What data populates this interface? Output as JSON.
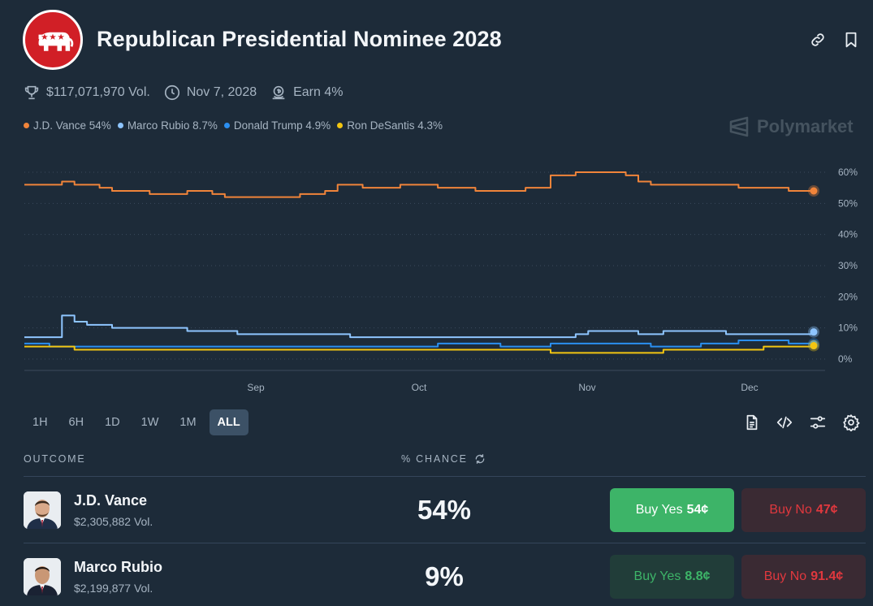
{
  "header": {
    "title": "Republican Presidential Nominee 2028",
    "logo_icon": "republican-elephant-logo",
    "link_icon": "link-icon",
    "bookmark_icon": "bookmark-icon"
  },
  "meta": {
    "volume": "$117,071,970 Vol.",
    "end_date": "Nov 7, 2028",
    "earn": "Earn 4%"
  },
  "legend": [
    {
      "label": "J.D. Vance 54%",
      "color": "#f0843a"
    },
    {
      "label": "Marco Rubio 8.7%",
      "color": "#8ec5ff"
    },
    {
      "label": "Donald Trump 4.9%",
      "color": "#2b8ff0"
    },
    {
      "label": "Ron DeSantis 4.3%",
      "color": "#f2c511"
    }
  ],
  "watermark": "Polymarket",
  "chart_data": {
    "type": "line",
    "x_labels": [
      "Sep",
      "Oct",
      "Nov",
      "Dec"
    ],
    "y_ticks": [
      "60%",
      "50%",
      "40%",
      "30%",
      "20%",
      "10%",
      "0%"
    ],
    "ylim": [
      0,
      60
    ],
    "grid": "horizontal-dotted",
    "series": [
      {
        "name": "J.D. Vance",
        "color": "#f0843a",
        "values": [
          56,
          56,
          56,
          57,
          56,
          56,
          55,
          54,
          54,
          54,
          53,
          53,
          53,
          54,
          54,
          53,
          52,
          52,
          52,
          52,
          52,
          52,
          53,
          53,
          54,
          56,
          56,
          55,
          55,
          55,
          56,
          56,
          56,
          55,
          55,
          55,
          54,
          54,
          54,
          54,
          55,
          55,
          59,
          59,
          60,
          60,
          60,
          60,
          59,
          57,
          56,
          56,
          56,
          56,
          56,
          56,
          56,
          55,
          55,
          55,
          55,
          54,
          54,
          54
        ]
      },
      {
        "name": "Marco Rubio",
        "color": "#8ec5ff",
        "values": [
          7,
          7,
          7,
          14,
          12,
          11,
          11,
          10,
          10,
          10,
          10,
          10,
          10,
          9,
          9,
          9,
          9,
          8,
          8,
          8,
          8,
          8,
          8,
          8,
          8,
          8,
          7,
          7,
          7,
          7,
          7,
          7,
          7,
          7,
          7,
          7,
          7,
          7,
          7,
          7,
          7,
          7,
          7,
          7,
          8,
          9,
          9,
          9,
          9,
          8,
          8,
          9,
          9,
          9,
          9,
          9,
          8,
          8,
          8,
          8,
          8,
          8,
          8,
          8.7
        ]
      },
      {
        "name": "Donald Trump",
        "color": "#2b8ff0",
        "values": [
          5,
          5,
          4,
          4,
          4,
          4,
          4,
          4,
          4,
          4,
          4,
          4,
          4,
          4,
          4,
          4,
          4,
          4,
          4,
          4,
          4,
          4,
          4,
          4,
          4,
          4,
          4,
          4,
          4,
          4,
          4,
          4,
          4,
          5,
          5,
          5,
          5,
          5,
          4,
          4,
          4,
          4,
          5,
          5,
          5,
          5,
          5,
          5,
          5,
          5,
          4,
          4,
          4,
          4,
          5,
          5,
          5,
          6,
          6,
          6,
          6,
          5,
          5,
          4.9
        ]
      },
      {
        "name": "Ron DeSantis",
        "color": "#f2c511",
        "values": [
          4,
          4,
          4,
          4,
          3,
          3,
          3,
          3,
          3,
          3,
          3,
          3,
          3,
          3,
          3,
          3,
          3,
          3,
          3,
          3,
          3,
          3,
          3,
          3,
          3,
          3,
          3,
          3,
          3,
          3,
          3,
          3,
          3,
          3,
          3,
          3,
          3,
          3,
          3,
          3,
          3,
          3,
          2,
          2,
          2,
          2,
          2,
          2,
          2,
          2,
          2,
          3,
          3,
          3,
          3,
          3,
          3,
          3,
          3,
          4,
          4,
          4,
          4,
          4.3
        ]
      }
    ]
  },
  "time_ranges": [
    "1H",
    "6H",
    "1D",
    "1W",
    "1M",
    "ALL"
  ],
  "active_range": "ALL",
  "toolbar_icons": [
    "document-icon",
    "embed-code-icon",
    "filters-icon",
    "settings-icon"
  ],
  "table": {
    "outcome_header": "OUTCOME",
    "chance_header": "% CHANCE",
    "rows": [
      {
        "name": "J.D. Vance",
        "volume": "$2,305,882 Vol.",
        "chance": "54%",
        "buy_yes_label": "Buy Yes",
        "buy_yes_price": "54¢",
        "buy_no_label": "Buy No",
        "buy_no_price": "47¢"
      },
      {
        "name": "Marco Rubio",
        "volume": "$2,199,877 Vol.",
        "chance": "9%",
        "buy_yes_label": "Buy Yes",
        "buy_yes_price": "8.8¢",
        "buy_no_label": "Buy No",
        "buy_no_price": "91.4¢"
      }
    ]
  }
}
